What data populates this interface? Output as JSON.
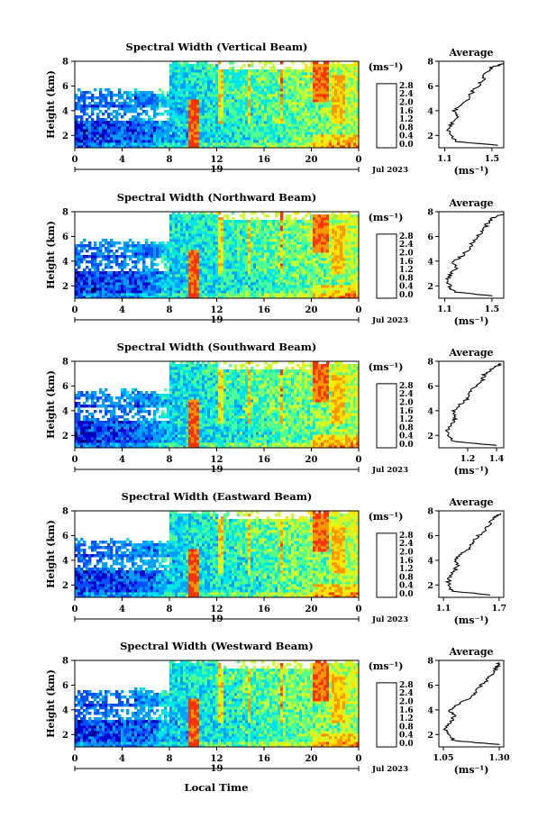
{
  "xlabel_bottom": "Local Time",
  "date_label": "Jul 2023",
  "day_label": "19",
  "colorbar_unit": "(ms⁻¹)",
  "colorbar_ticks": [
    "0.0",
    "0.4",
    "0.8",
    "1.2",
    "1.6",
    "2.0",
    "2.4",
    "2.8"
  ],
  "colorbar_colors": [
    "#000050",
    "#0000c8",
    "#0050ff",
    "#00a0ff",
    "#00e6e6",
    "#50ff90",
    "#c8ff30",
    "#ffe600",
    "#ff9600",
    "#ff3200"
  ],
  "chart_data": [
    {
      "type": "heatmap",
      "title": "Spectral Width (Vertical Beam)",
      "ylabel": "Height (km)",
      "x_ticks": [
        "0",
        "4",
        "8",
        "12",
        "16",
        "20",
        "0"
      ],
      "y_ticks": [
        "2",
        "4",
        "6",
        "8"
      ],
      "xlim": [
        0,
        24
      ],
      "ylim": [
        1,
        8
      ],
      "colorbar_range": [
        0.0,
        3.0
      ],
      "profile": {
        "title": "Average",
        "xlabel": "(ms⁻¹)",
        "x_ticks": [
          "1.1",
          "1.5"
        ],
        "xlim": [
          1.05,
          1.6
        ],
        "y_ticks": [
          "2",
          "4",
          "6",
          "8"
        ],
        "heights": [
          1.2,
          1.5,
          2.0,
          2.5,
          3.0,
          3.5,
          4.0,
          4.5,
          5.0,
          5.5,
          6.0,
          6.5,
          7.0,
          7.5,
          7.8
        ],
        "values": [
          1.55,
          1.2,
          1.15,
          1.13,
          1.16,
          1.2,
          1.18,
          1.25,
          1.3,
          1.33,
          1.38,
          1.42,
          1.45,
          1.5,
          1.6
        ]
      }
    },
    {
      "type": "heatmap",
      "title": "Spectral Width (Northward Beam)",
      "ylabel": "Height (km)",
      "x_ticks": [
        "0",
        "4",
        "8",
        "12",
        "16",
        "20",
        "0"
      ],
      "y_ticks": [
        "2",
        "4",
        "6",
        "8"
      ],
      "xlim": [
        0,
        24
      ],
      "ylim": [
        1,
        8
      ],
      "colorbar_range": [
        0.0,
        3.0
      ],
      "profile": {
        "title": "Average",
        "xlabel": "(ms⁻¹)",
        "x_ticks": [
          "1.1",
          "1.5"
        ],
        "xlim": [
          1.05,
          1.6
        ],
        "y_ticks": [
          "2",
          "4",
          "6",
          "8"
        ],
        "heights": [
          1.2,
          1.5,
          2.0,
          2.5,
          3.0,
          3.5,
          4.0,
          4.5,
          5.0,
          5.5,
          6.0,
          6.5,
          7.0,
          7.5,
          7.8
        ],
        "values": [
          1.5,
          1.18,
          1.14,
          1.12,
          1.15,
          1.2,
          1.17,
          1.26,
          1.3,
          1.34,
          1.37,
          1.43,
          1.46,
          1.5,
          1.6
        ]
      }
    },
    {
      "type": "heatmap",
      "title": "Spectral Width (Southward Beam)",
      "ylabel": "Height (km)",
      "x_ticks": [
        "0",
        "4",
        "8",
        "12",
        "16",
        "20",
        "0"
      ],
      "y_ticks": [
        "2",
        "4",
        "6",
        "8"
      ],
      "xlim": [
        0,
        24
      ],
      "ylim": [
        1,
        8
      ],
      "colorbar_range": [
        0.0,
        3.0
      ],
      "profile": {
        "title": "Average",
        "xlabel": "(ms⁻¹)",
        "x_ticks": [
          "1.2",
          "1.4"
        ],
        "xlim": [
          1.0,
          1.45
        ],
        "y_ticks": [
          "2",
          "4",
          "6",
          "8"
        ],
        "heights": [
          1.2,
          1.5,
          2.0,
          2.5,
          3.0,
          3.5,
          4.0,
          4.5,
          5.0,
          5.5,
          6.0,
          6.5,
          7.0,
          7.5,
          7.8
        ],
        "values": [
          1.4,
          1.1,
          1.07,
          1.06,
          1.09,
          1.12,
          1.1,
          1.15,
          1.2,
          1.22,
          1.25,
          1.3,
          1.32,
          1.38,
          1.43
        ]
      }
    },
    {
      "type": "heatmap",
      "title": "Spectral Width (Eastward Beam)",
      "ylabel": "Height (km)",
      "x_ticks": [
        "0",
        "4",
        "8",
        "12",
        "16",
        "20",
        "0"
      ],
      "y_ticks": [
        "2",
        "4",
        "6",
        "8"
      ],
      "xlim": [
        0,
        24
      ],
      "ylim": [
        1,
        8
      ],
      "colorbar_range": [
        0.0,
        3.0
      ],
      "profile": {
        "title": "Average",
        "xlabel": "(ms⁻¹)",
        "x_ticks": [
          "1.1",
          "1.7"
        ],
        "xlim": [
          1.05,
          1.75
        ],
        "y_ticks": [
          "2",
          "4",
          "6",
          "8"
        ],
        "heights": [
          1.2,
          1.5,
          2.0,
          2.5,
          3.0,
          3.5,
          4.0,
          4.5,
          5.0,
          5.5,
          6.0,
          6.5,
          7.0,
          7.5,
          7.8
        ],
        "values": [
          1.6,
          1.2,
          1.15,
          1.16,
          1.2,
          1.25,
          1.22,
          1.3,
          1.38,
          1.42,
          1.48,
          1.55,
          1.6,
          1.65,
          1.72
        ]
      }
    },
    {
      "type": "heatmap",
      "title": "Spectral Width (Westward Beam)",
      "ylabel": "Height (km)",
      "x_ticks": [
        "0",
        "4",
        "8",
        "12",
        "16",
        "20",
        "0"
      ],
      "y_ticks": [
        "2",
        "4",
        "6",
        "8"
      ],
      "xlim": [
        0,
        24
      ],
      "ylim": [
        1,
        8
      ],
      "colorbar_range": [
        0.0,
        3.0
      ],
      "profile": {
        "title": "Average",
        "xlabel": "(ms⁻¹)",
        "x_ticks": [
          "1.05",
          "1.30"
        ],
        "xlim": [
          1.03,
          1.32
        ],
        "y_ticks": [
          "2",
          "4",
          "6",
          "8"
        ],
        "heights": [
          1.2,
          1.5,
          2.0,
          2.5,
          3.0,
          3.5,
          4.0,
          4.5,
          5.0,
          5.5,
          6.0,
          6.5,
          7.0,
          7.5,
          7.8
        ],
        "values": [
          1.3,
          1.1,
          1.07,
          1.06,
          1.08,
          1.1,
          1.08,
          1.12,
          1.17,
          1.2,
          1.22,
          1.25,
          1.27,
          1.29,
          1.3
        ]
      }
    }
  ]
}
